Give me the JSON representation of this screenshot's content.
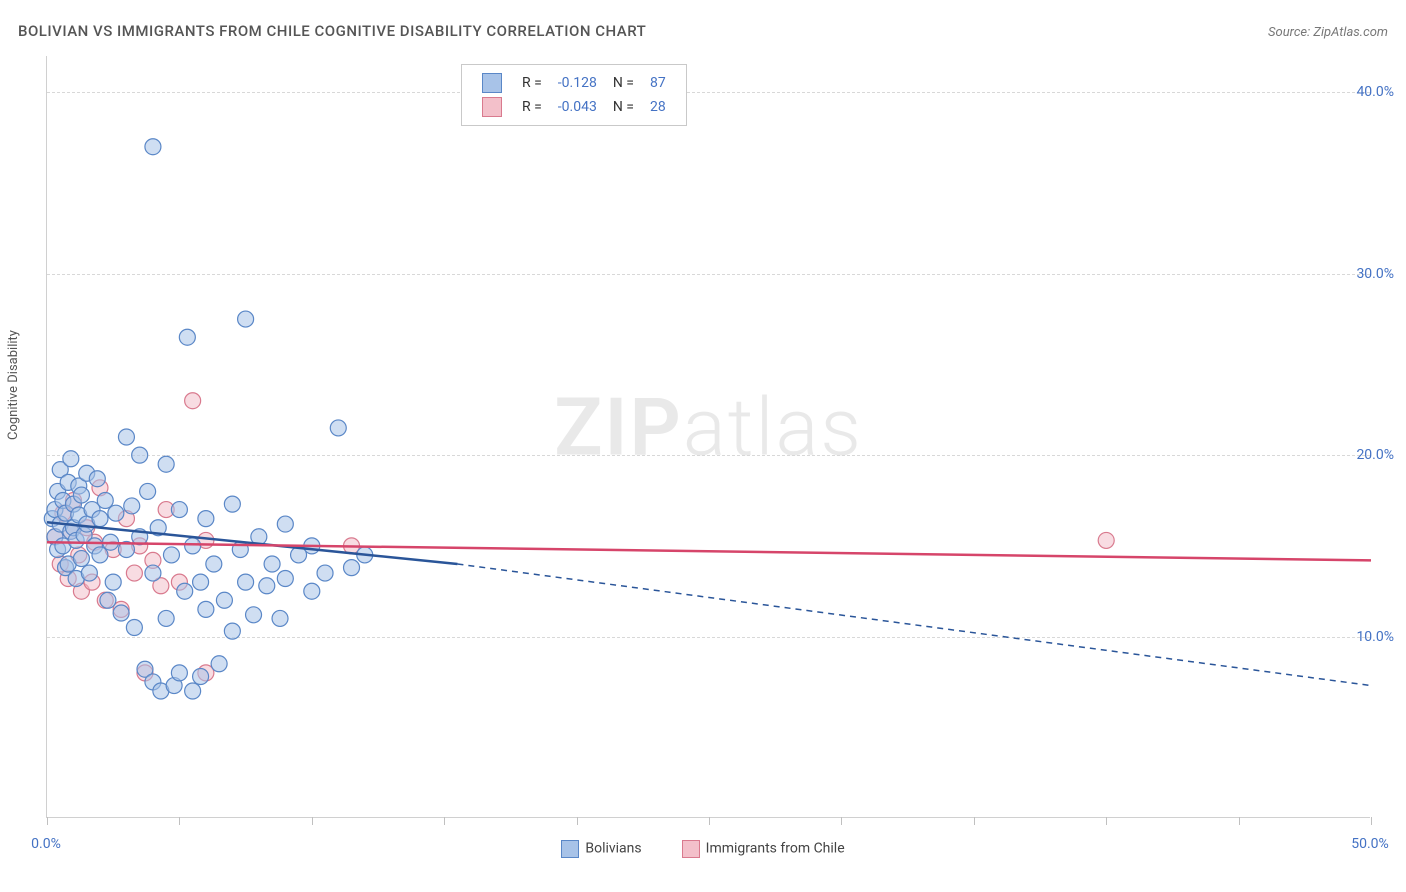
{
  "title": "BOLIVIAN VS IMMIGRANTS FROM CHILE COGNITIVE DISABILITY CORRELATION CHART",
  "source": "Source: ZipAtlas.com",
  "ylabel": "Cognitive Disability",
  "watermark_a": "ZIP",
  "watermark_b": "atlas",
  "chart": {
    "type": "scatter",
    "xlim": [
      0,
      50
    ],
    "ylim": [
      0,
      42
    ],
    "x_ticks": [
      0,
      5,
      10,
      15,
      20,
      25,
      30,
      35,
      40,
      45,
      50
    ],
    "x_tick_labels": {
      "0": "0.0%",
      "50": "50.0%"
    },
    "y_gridlines": [
      10,
      20,
      30,
      40
    ],
    "y_tick_labels": {
      "10": "10.0%",
      "20": "20.0%",
      "30": "30.0%",
      "40": "40.0%"
    },
    "background_color": "#ffffff",
    "grid_color": "#d8d8d8",
    "axis_color": "#d0d0d0",
    "tick_label_color": "#4472c4",
    "marker_radius": 8,
    "marker_opacity": 0.55,
    "series": [
      {
        "name": "Bolivians",
        "color_fill": "#a8c3e8",
        "color_stroke": "#5a87c7",
        "line_color": "#2a5599",
        "r": "-0.128",
        "n": "87",
        "trend": {
          "x1": 0,
          "y1": 16.3,
          "x2": 15.5,
          "y2": 14.0,
          "dash_x2": 50,
          "dash_y2": 7.3
        },
        "points": [
          [
            0.2,
            16.5
          ],
          [
            0.3,
            17.0
          ],
          [
            0.3,
            15.5
          ],
          [
            0.4,
            18.0
          ],
          [
            0.4,
            14.8
          ],
          [
            0.5,
            16.2
          ],
          [
            0.5,
            19.2
          ],
          [
            0.6,
            15.0
          ],
          [
            0.6,
            17.5
          ],
          [
            0.7,
            13.8
          ],
          [
            0.7,
            16.8
          ],
          [
            0.8,
            18.5
          ],
          [
            0.8,
            14.0
          ],
          [
            0.9,
            15.8
          ],
          [
            0.9,
            19.8
          ],
          [
            1.0,
            16.0
          ],
          [
            1.0,
            17.3
          ],
          [
            1.1,
            13.2
          ],
          [
            1.1,
            15.3
          ],
          [
            1.2,
            18.3
          ],
          [
            1.2,
            16.7
          ],
          [
            1.3,
            14.3
          ],
          [
            1.3,
            17.8
          ],
          [
            1.4,
            15.6
          ],
          [
            1.5,
            19.0
          ],
          [
            1.5,
            16.2
          ],
          [
            1.6,
            13.5
          ],
          [
            1.7,
            17.0
          ],
          [
            1.8,
            15.0
          ],
          [
            1.9,
            18.7
          ],
          [
            2.0,
            14.5
          ],
          [
            2.0,
            16.5
          ],
          [
            2.2,
            17.5
          ],
          [
            2.3,
            12.0
          ],
          [
            2.4,
            15.2
          ],
          [
            2.5,
            13.0
          ],
          [
            2.6,
            16.8
          ],
          [
            2.8,
            11.3
          ],
          [
            3.0,
            21.0
          ],
          [
            3.0,
            14.8
          ],
          [
            3.2,
            17.2
          ],
          [
            3.3,
            10.5
          ],
          [
            3.5,
            20.0
          ],
          [
            3.5,
            15.5
          ],
          [
            3.7,
            8.2
          ],
          [
            3.8,
            18.0
          ],
          [
            4.0,
            13.5
          ],
          [
            4.0,
            7.5
          ],
          [
            4.2,
            16.0
          ],
          [
            4.3,
            7.0
          ],
          [
            4.5,
            19.5
          ],
          [
            4.5,
            11.0
          ],
          [
            4.7,
            14.5
          ],
          [
            4.8,
            7.3
          ],
          [
            5.0,
            17.0
          ],
          [
            5.0,
            8.0
          ],
          [
            5.2,
            12.5
          ],
          [
            5.3,
            26.5
          ],
          [
            5.5,
            15.0
          ],
          [
            5.5,
            7.0
          ],
          [
            5.8,
            13.0
          ],
          [
            5.8,
            7.8
          ],
          [
            6.0,
            16.5
          ],
          [
            6.0,
            11.5
          ],
          [
            6.3,
            14.0
          ],
          [
            6.5,
            8.5
          ],
          [
            6.7,
            12.0
          ],
          [
            7.0,
            17.3
          ],
          [
            7.0,
            10.3
          ],
          [
            7.3,
            14.8
          ],
          [
            7.5,
            13.0
          ],
          [
            7.5,
            27.5
          ],
          [
            7.8,
            11.2
          ],
          [
            8.0,
            15.5
          ],
          [
            8.3,
            12.8
          ],
          [
            8.5,
            14.0
          ],
          [
            8.8,
            11.0
          ],
          [
            9.0,
            16.2
          ],
          [
            9.0,
            13.2
          ],
          [
            9.5,
            14.5
          ],
          [
            10.0,
            12.5
          ],
          [
            10.0,
            15.0
          ],
          [
            10.5,
            13.5
          ],
          [
            11.0,
            21.5
          ],
          [
            11.5,
            13.8
          ],
          [
            12.0,
            14.5
          ],
          [
            4.0,
            37.0
          ]
        ]
      },
      {
        "name": "Immigrants from Chile",
        "color_fill": "#f3c0ca",
        "color_stroke": "#d97a8e",
        "line_color": "#d6456a",
        "r": "-0.043",
        "n": "28",
        "trend": {
          "x1": 0,
          "y1": 15.2,
          "x2": 50,
          "y2": 14.2,
          "dash_x2": 50,
          "dash_y2": 14.2
        },
        "points": [
          [
            0.3,
            15.5
          ],
          [
            0.5,
            14.0
          ],
          [
            0.6,
            16.8
          ],
          [
            0.8,
            13.2
          ],
          [
            0.9,
            15.8
          ],
          [
            1.0,
            17.5
          ],
          [
            1.2,
            14.5
          ],
          [
            1.3,
            12.5
          ],
          [
            1.5,
            16.0
          ],
          [
            1.7,
            13.0
          ],
          [
            1.8,
            15.2
          ],
          [
            2.0,
            18.2
          ],
          [
            2.2,
            12.0
          ],
          [
            2.5,
            14.8
          ],
          [
            2.8,
            11.5
          ],
          [
            3.0,
            16.5
          ],
          [
            3.3,
            13.5
          ],
          [
            3.5,
            15.0
          ],
          [
            3.7,
            8.0
          ],
          [
            4.0,
            14.2
          ],
          [
            4.3,
            12.8
          ],
          [
            4.5,
            17.0
          ],
          [
            5.0,
            13.0
          ],
          [
            5.5,
            23.0
          ],
          [
            6.0,
            15.3
          ],
          [
            6.0,
            8.0
          ],
          [
            11.5,
            15.0
          ],
          [
            40.0,
            15.3
          ]
        ]
      }
    ]
  },
  "corr_legend": {
    "r_label": "R =",
    "n_label": "N ="
  },
  "bottom_legend": {
    "a": "Bolivians",
    "b": "Immigrants from Chile"
  }
}
